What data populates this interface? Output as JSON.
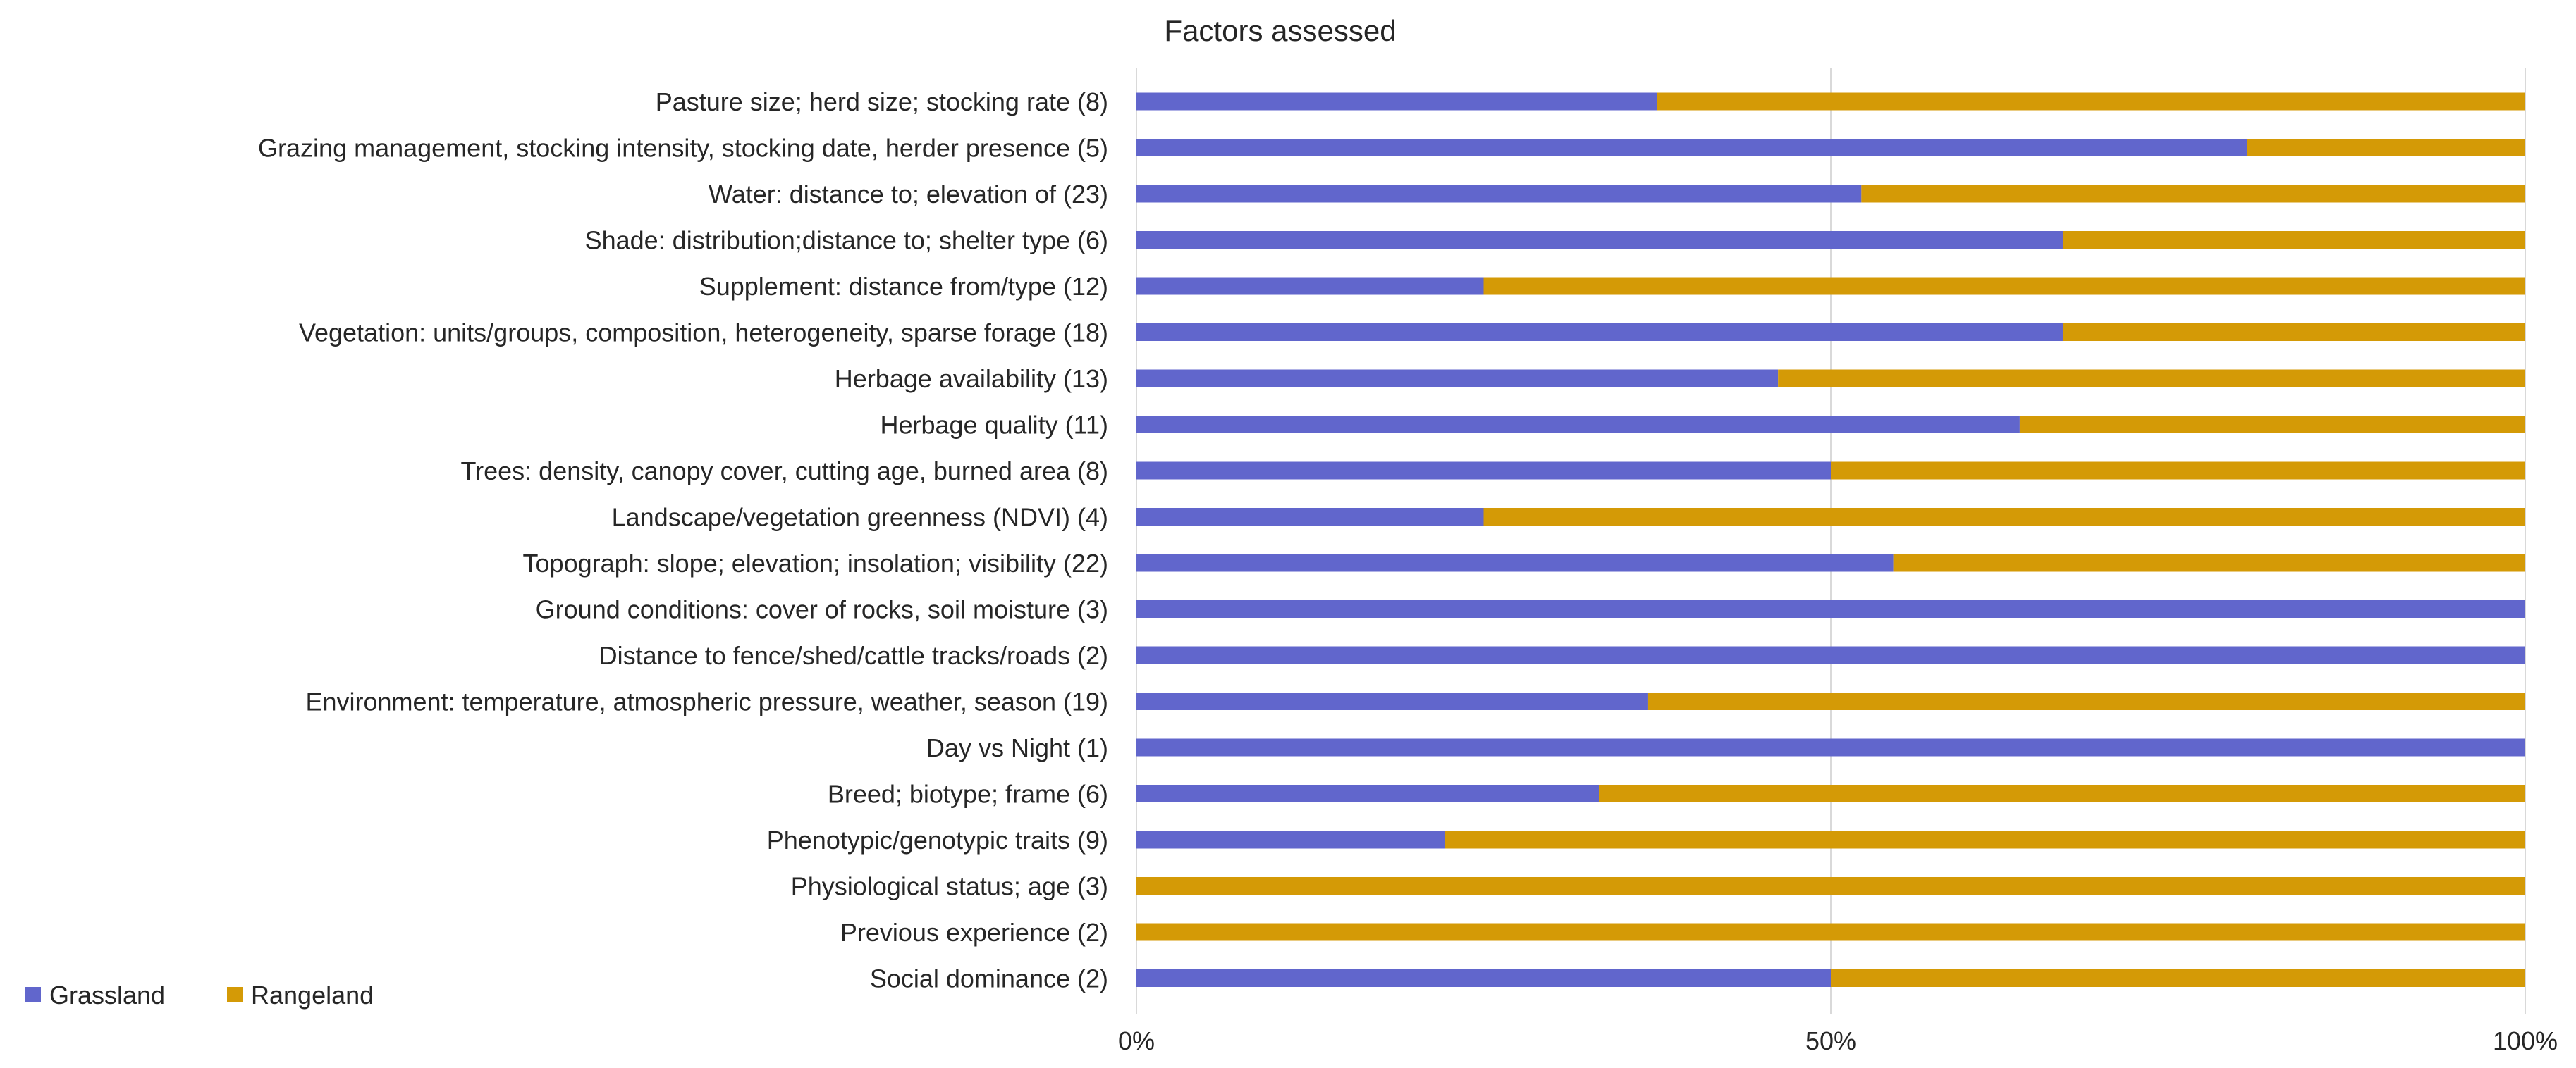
{
  "chart_data": {
    "type": "bar",
    "orientation": "horizontal",
    "stacked": "percent",
    "title": "Factors assessed",
    "xlabel": "",
    "ylabel": "",
    "xlim": [
      0,
      100
    ],
    "x_ticks": [
      "0%",
      "50%",
      "100%"
    ],
    "grid": "vertical",
    "legend_position": "bottom-left",
    "categories": [
      "Pasture size; herd size; stocking rate (8)",
      "Grazing management, stocking intensity, stocking date, herder presence (5)",
      "Water: distance to; elevation of (23)",
      "Shade: distribution;distance to; shelter type (6)",
      "Supplement: distance from/type (12)",
      "Vegetation: units/groups, composition, heterogeneity, sparse forage (18)",
      "Herbage availability (13)",
      "Herbage quality (11)",
      "Trees: density, canopy cover, cutting age, burned area (8)",
      "Landscape/vegetation greenness (NDVI) (4)",
      "Topograph: slope; elevation; insolation; visibility (22)",
      "Ground conditions: cover of rocks, soil moisture (3)",
      "Distance to fence/shed/cattle tracks/roads (2)",
      "Environment: temperature, atmospheric pressure, weather, season (19)",
      "Day vs Night (1)",
      "Breed; biotype; frame (6)",
      "Phenotypic/genotypic traits (9)",
      "Physiological status; age (3)",
      "Previous experience (2)",
      "Social dominance (2)"
    ],
    "series": [
      {
        "name": "Grassland",
        "color": "#6166CC",
        "values": [
          37.5,
          80,
          52.2,
          66.7,
          25,
          66.7,
          46.2,
          63.6,
          50,
          25,
          54.5,
          100,
          100,
          36.8,
          100,
          33.3,
          22.2,
          0,
          0,
          50
        ]
      },
      {
        "name": "Rangeland",
        "color": "#D49A06",
        "values": [
          62.5,
          20,
          47.8,
          33.3,
          75,
          33.3,
          53.8,
          36.4,
          50,
          75,
          45.5,
          0,
          0,
          63.2,
          0,
          66.7,
          77.8,
          100,
          100,
          50
        ]
      }
    ],
    "colors": {
      "grid": "#D9D9D9",
      "text": "#262626"
    }
  }
}
